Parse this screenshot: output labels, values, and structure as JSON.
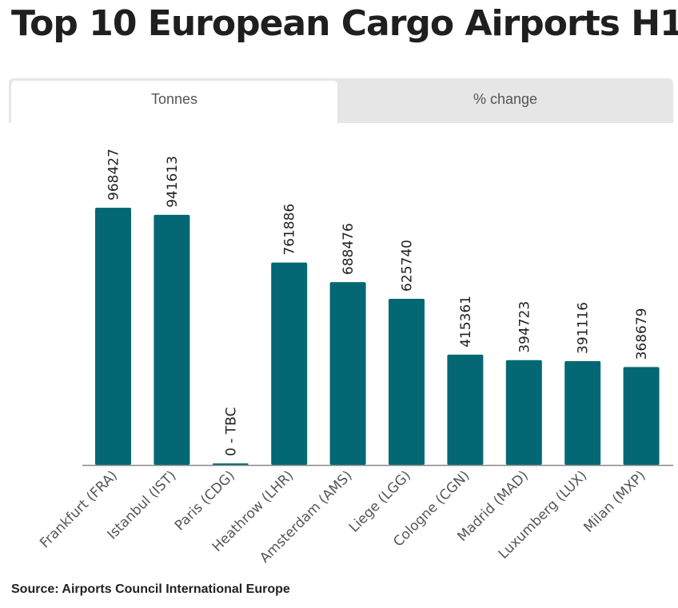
{
  "title": "Top 10 European Cargo Airports H1",
  "tabs": [
    {
      "label": "Tonnes",
      "active": true
    },
    {
      "label": "% change",
      "active": false
    }
  ],
  "source": "Source: Airports Council International Europe",
  "colors": {
    "bar": "#036873",
    "axis": "#888888",
    "tab_active_bg": "#ffffff",
    "tab_inactive_bg": "#e6e6e6"
  },
  "chart_data": {
    "type": "bar",
    "categories": [
      "Frankfurt (FRA)",
      "Istanbul (IST)",
      "Paris (CDG)",
      "Heathrow (LHR)",
      "Amsterdam (AMS)",
      "Liege (LGG)",
      "Cologne (CGN)",
      "Madrid (MAD)",
      "Luxumberg (LUX)",
      "Milan (MXP)"
    ],
    "values": [
      968427,
      941613,
      0,
      761886,
      688476,
      625740,
      415361,
      394723,
      391116,
      368679
    ],
    "data_labels": [
      "968427",
      "941613",
      "0 - TBC",
      "761886",
      "688476",
      "625740",
      "415361",
      "394723",
      "391116",
      "368679"
    ],
    "ylim": [
      0,
      968427
    ],
    "grid": false,
    "legend": "none"
  }
}
